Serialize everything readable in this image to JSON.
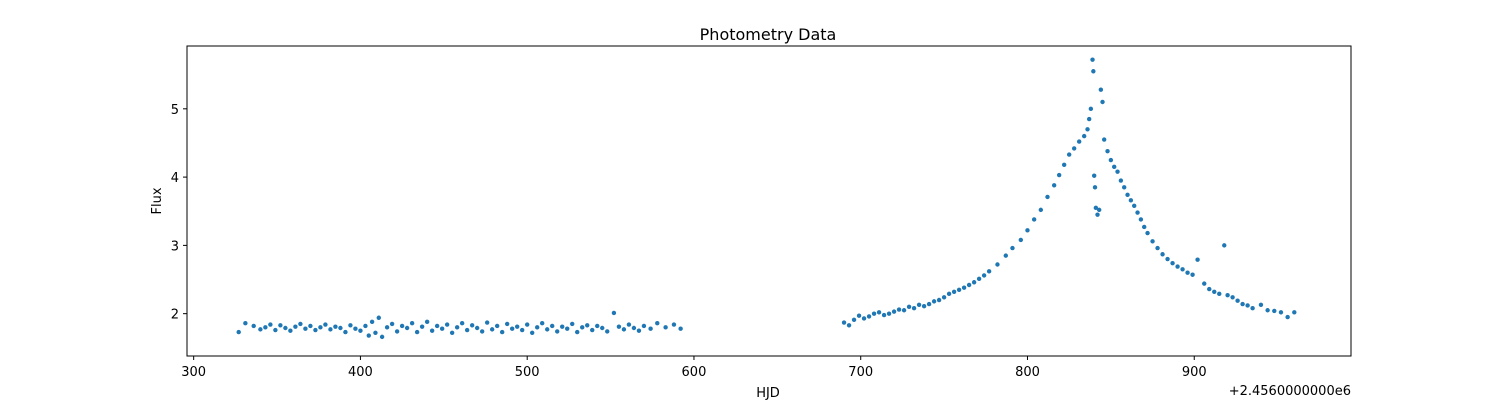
{
  "chart_data": {
    "type": "scatter",
    "title": "Photometry Data",
    "xlabel": "HJD",
    "ylabel": "Flux",
    "x_offset_label": "+2.4560000000e6",
    "xlim": [
      296,
      994
    ],
    "ylim": [
      1.38,
      5.92
    ],
    "xticks": [
      300,
      400,
      500,
      600,
      700,
      800,
      900
    ],
    "xtick_labels": [
      "300",
      "400",
      "500",
      "600",
      "700",
      "800",
      "900"
    ],
    "yticks": [
      2,
      3,
      4,
      5
    ],
    "ytick_labels": [
      "2",
      "3",
      "4",
      "5"
    ],
    "grid": false,
    "marker_color": "#1f77b4",
    "series": [
      {
        "points": [
          [
            327,
            1.73
          ],
          [
            331,
            1.86
          ],
          [
            336,
            1.82
          ],
          [
            340,
            1.77
          ],
          [
            343,
            1.8
          ],
          [
            346,
            1.84
          ],
          [
            349,
            1.76
          ],
          [
            352,
            1.83
          ],
          [
            355,
            1.79
          ],
          [
            358,
            1.75
          ],
          [
            361,
            1.81
          ],
          [
            364,
            1.85
          ],
          [
            367,
            1.78
          ],
          [
            370,
            1.82
          ],
          [
            373,
            1.76
          ],
          [
            376,
            1.8
          ],
          [
            379,
            1.84
          ],
          [
            382,
            1.77
          ],
          [
            385,
            1.81
          ],
          [
            388,
            1.79
          ],
          [
            391,
            1.73
          ],
          [
            394,
            1.83
          ],
          [
            397,
            1.78
          ],
          [
            400,
            1.75
          ],
          [
            403,
            1.82
          ],
          [
            405,
            1.68
          ],
          [
            407,
            1.88
          ],
          [
            409,
            1.72
          ],
          [
            411,
            1.94
          ],
          [
            413,
            1.66
          ],
          [
            416,
            1.8
          ],
          [
            419,
            1.85
          ],
          [
            422,
            1.74
          ],
          [
            425,
            1.82
          ],
          [
            428,
            1.79
          ],
          [
            431,
            1.86
          ],
          [
            434,
            1.73
          ],
          [
            437,
            1.81
          ],
          [
            440,
            1.88
          ],
          [
            443,
            1.75
          ],
          [
            446,
            1.82
          ],
          [
            449,
            1.78
          ],
          [
            452,
            1.84
          ],
          [
            455,
            1.72
          ],
          [
            458,
            1.8
          ],
          [
            461,
            1.86
          ],
          [
            464,
            1.76
          ],
          [
            467,
            1.83
          ],
          [
            470,
            1.79
          ],
          [
            473,
            1.74
          ],
          [
            476,
            1.87
          ],
          [
            479,
            1.77
          ],
          [
            482,
            1.82
          ],
          [
            485,
            1.73
          ],
          [
            488,
            1.85
          ],
          [
            491,
            1.78
          ],
          [
            494,
            1.81
          ],
          [
            497,
            1.76
          ],
          [
            500,
            1.84
          ],
          [
            503,
            1.72
          ],
          [
            506,
            1.8
          ],
          [
            509,
            1.86
          ],
          [
            512,
            1.77
          ],
          [
            515,
            1.82
          ],
          [
            518,
            1.74
          ],
          [
            521,
            1.81
          ],
          [
            524,
            1.78
          ],
          [
            527,
            1.85
          ],
          [
            530,
            1.73
          ],
          [
            533,
            1.8
          ],
          [
            536,
            1.83
          ],
          [
            539,
            1.76
          ],
          [
            542,
            1.82
          ],
          [
            545,
            1.79
          ],
          [
            548,
            1.74
          ],
          [
            552,
            2.01
          ],
          [
            555,
            1.81
          ],
          [
            558,
            1.77
          ],
          [
            561,
            1.84
          ],
          [
            564,
            1.79
          ],
          [
            567,
            1.75
          ],
          [
            570,
            1.82
          ],
          [
            574,
            1.78
          ],
          [
            578,
            1.86
          ],
          [
            583,
            1.8
          ],
          [
            588,
            1.84
          ],
          [
            592,
            1.78
          ],
          [
            690,
            1.87
          ],
          [
            693,
            1.83
          ],
          [
            696,
            1.91
          ],
          [
            699,
            1.97
          ],
          [
            702,
            1.93
          ],
          [
            705,
            1.96
          ],
          [
            708,
            2.0
          ],
          [
            711,
            2.02
          ],
          [
            714,
            1.98
          ],
          [
            717,
            2.0
          ],
          [
            720,
            2.03
          ],
          [
            723,
            2.06
          ],
          [
            726,
            2.05
          ],
          [
            729,
            2.1
          ],
          [
            732,
            2.08
          ],
          [
            735,
            2.13
          ],
          [
            738,
            2.11
          ],
          [
            741,
            2.14
          ],
          [
            744,
            2.18
          ],
          [
            747,
            2.2
          ],
          [
            750,
            2.24
          ],
          [
            753,
            2.29
          ],
          [
            756,
            2.32
          ],
          [
            759,
            2.35
          ],
          [
            762,
            2.38
          ],
          [
            765,
            2.42
          ],
          [
            768,
            2.46
          ],
          [
            771,
            2.51
          ],
          [
            774,
            2.56
          ],
          [
            777,
            2.62
          ],
          [
            782,
            2.72
          ],
          [
            787,
            2.85
          ],
          [
            791,
            2.96
          ],
          [
            796,
            3.08
          ],
          [
            800,
            3.22
          ],
          [
            804,
            3.38
          ],
          [
            808,
            3.52
          ],
          [
            812,
            3.71
          ],
          [
            816,
            3.88
          ],
          [
            819,
            4.03
          ],
          [
            822,
            4.18
          ],
          [
            825,
            4.33
          ],
          [
            828,
            4.42
          ],
          [
            831,
            4.52
          ],
          [
            834,
            4.6
          ],
          [
            836,
            4.7
          ],
          [
            837,
            4.85
          ],
          [
            838,
            5.0
          ],
          [
            839,
            5.72
          ],
          [
            839.5,
            5.55
          ],
          [
            840,
            4.02
          ],
          [
            840.5,
            3.85
          ],
          [
            841,
            3.55
          ],
          [
            842,
            3.45
          ],
          [
            843,
            3.52
          ],
          [
            844,
            5.28
          ],
          [
            845,
            5.1
          ],
          [
            846,
            4.55
          ],
          [
            848,
            4.38
          ],
          [
            850,
            4.25
          ],
          [
            852,
            4.15
          ],
          [
            854,
            4.08
          ],
          [
            856,
            3.95
          ],
          [
            858,
            3.85
          ],
          [
            860,
            3.74
          ],
          [
            862,
            3.66
          ],
          [
            864,
            3.58
          ],
          [
            866,
            3.48
          ],
          [
            868,
            3.38
          ],
          [
            870,
            3.27
          ],
          [
            872,
            3.18
          ],
          [
            875,
            3.06
          ],
          [
            878,
            2.96
          ],
          [
            881,
            2.87
          ],
          [
            884,
            2.8
          ],
          [
            887,
            2.74
          ],
          [
            890,
            2.69
          ],
          [
            893,
            2.65
          ],
          [
            896,
            2.6
          ],
          [
            899,
            2.57
          ],
          [
            902,
            2.79
          ],
          [
            906,
            2.44
          ],
          [
            909,
            2.36
          ],
          [
            912,
            2.32
          ],
          [
            915,
            2.29
          ],
          [
            918,
            3.0
          ],
          [
            920,
            2.27
          ],
          [
            923,
            2.24
          ],
          [
            926,
            2.19
          ],
          [
            929,
            2.14
          ],
          [
            932,
            2.12
          ],
          [
            935,
            2.08
          ],
          [
            940,
            2.13
          ],
          [
            944,
            2.05
          ],
          [
            948,
            2.04
          ],
          [
            952,
            2.02
          ],
          [
            956,
            1.95
          ],
          [
            960,
            2.02
          ]
        ]
      }
    ]
  }
}
